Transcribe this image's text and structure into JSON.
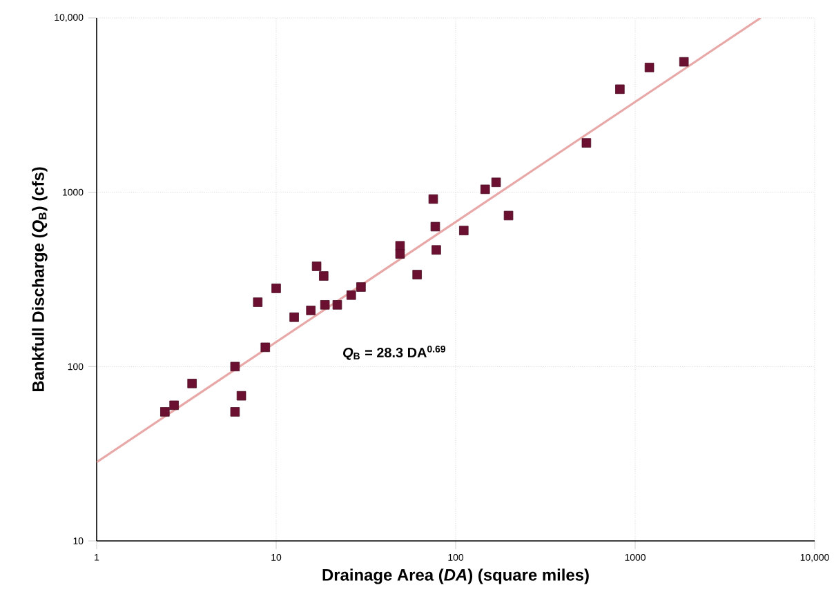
{
  "chart_data": {
    "type": "scatter",
    "xlabel": "Drainage Area (*DA*) (square miles)",
    "ylabel": "Bankfull Discharge (*Q*$_{B}$) (cfs)",
    "log": "xy",
    "grid": true,
    "xlim": [
      1,
      10000
    ],
    "ylim": [
      10,
      10000
    ],
    "xticks": [
      1,
      10,
      100,
      1000,
      {
        "value": 10000,
        "label": "10,000"
      }
    ],
    "yticks": [
      10,
      100,
      1000,
      {
        "value": 10000,
        "label": "10,000"
      }
    ],
    "annotations": [
      "*Q*$_{B}$ = 28.3 DA$^{0.69}$"
    ],
    "series": [
      {
        "marker": "square",
        "color": "#6b1030",
        "x": [
          2.4,
          2.7,
          3.4,
          5.9,
          5.9,
          6.4,
          8.7,
          7.9,
          10,
          12.6,
          15.6,
          16.8,
          18.4,
          18.7,
          21.9,
          26.2,
          29.7,
          49,
          49,
          61,
          75,
          77,
          78,
          111,
          146,
          168,
          197,
          535,
          822,
          1200,
          1870
        ],
        "values": [
          55,
          60,
          80,
          100,
          55,
          68,
          129,
          234,
          281,
          192,
          210,
          376,
          331,
          226,
          226,
          257,
          286,
          493,
          443,
          337,
          914,
          635,
          467,
          603,
          1040,
          1140,
          735,
          1920,
          3900,
          5200,
          5600
        ]
      },
      {
        "type": "line",
        "color": "#e8a8a8",
        "x": [
          1,
          5000
        ],
        "values": [
          28.3,
          10000
        ]
      }
    ]
  }
}
